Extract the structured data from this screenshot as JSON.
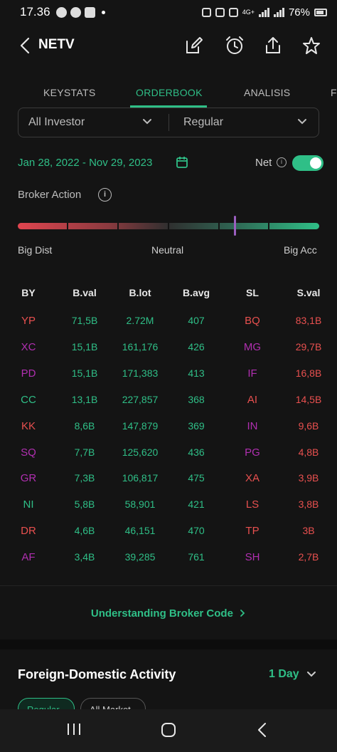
{
  "status": {
    "time": "17.36",
    "network": "4G+",
    "battery": "76%"
  },
  "header": {
    "ticker": "NETV"
  },
  "tabs": [
    "KEYSTATS",
    "ORDERBOOK",
    "ANALISIS",
    "F"
  ],
  "active_tab": "ORDERBOOK",
  "filters": {
    "investor": "All Investor",
    "market": "Regular"
  },
  "date_range": "Jan 28, 2022 - Nov 29, 2023",
  "net": {
    "label": "Net",
    "enabled": true
  },
  "broker_action": {
    "title": "Broker Action",
    "level": 0.72,
    "labels": {
      "left": "Big Dist",
      "middle": "Neutral",
      "right": "Big Acc"
    }
  },
  "table": {
    "headers": [
      "BY",
      "B.val",
      "B.lot",
      "B.avg",
      "SL",
      "S.val"
    ],
    "rows": [
      {
        "by": "YP",
        "by_color": "r",
        "bval": "71,5B",
        "blot": "2.72M",
        "bavg": "407",
        "sl": "BQ",
        "sl_color": "r",
        "sval": "83,1B"
      },
      {
        "by": "XC",
        "by_color": "p",
        "bval": "15,1B",
        "blot": "161,176",
        "bavg": "426",
        "sl": "MG",
        "sl_color": "p",
        "sval": "29,7B"
      },
      {
        "by": "PD",
        "by_color": "p",
        "bval": "15,1B",
        "blot": "171,383",
        "bavg": "413",
        "sl": "IF",
        "sl_color": "p",
        "sval": "16,8B"
      },
      {
        "by": "CC",
        "by_color": "g",
        "bval": "13,1B",
        "blot": "227,857",
        "bavg": "368",
        "sl": "AI",
        "sl_color": "r",
        "sval": "14,5B"
      },
      {
        "by": "KK",
        "by_color": "r",
        "bval": "8,6B",
        "blot": "147,879",
        "bavg": "369",
        "sl": "IN",
        "sl_color": "p",
        "sval": "9,6B"
      },
      {
        "by": "SQ",
        "by_color": "p",
        "bval": "7,7B",
        "blot": "125,620",
        "bavg": "436",
        "sl": "PG",
        "sl_color": "p",
        "sval": "4,8B"
      },
      {
        "by": "GR",
        "by_color": "p",
        "bval": "7,3B",
        "blot": "106,817",
        "bavg": "475",
        "sl": "XA",
        "sl_color": "r",
        "sval": "3,9B"
      },
      {
        "by": "NI",
        "by_color": "g",
        "bval": "5,8B",
        "blot": "58,901",
        "bavg": "421",
        "sl": "LS",
        "sl_color": "r",
        "sval": "3,8B"
      },
      {
        "by": "DR",
        "by_color": "r",
        "bval": "4,6B",
        "blot": "46,151",
        "bavg": "470",
        "sl": "TP",
        "sl_color": "r",
        "sval": "3B"
      },
      {
        "by": "AF",
        "by_color": "p",
        "bval": "3,4B",
        "blot": "39,285",
        "bavg": "761",
        "sl": "SH",
        "sl_color": "p",
        "sval": "2,7B"
      }
    ]
  },
  "understanding_link": "Understanding Broker Code",
  "foreign": {
    "title": "Foreign-Domestic Activity",
    "period": "1 Day",
    "pills": [
      "Regular",
      "All Market"
    ]
  },
  "colors": {
    "accent": "#2fbf87",
    "sell": "#e8504f",
    "foreign": "#b12fb1"
  }
}
